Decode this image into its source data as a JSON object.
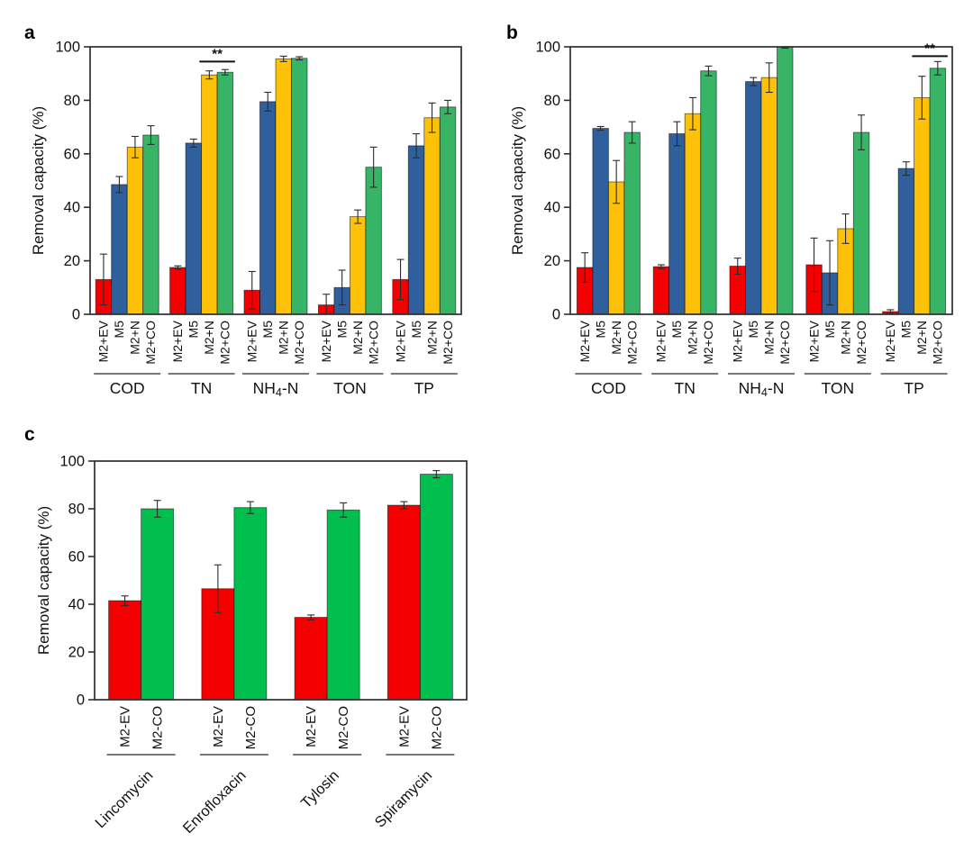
{
  "figure": {
    "background": "#ffffff",
    "axis_color": "#2e2e2e",
    "error_bar_color": "#2b2b2b",
    "text_color": "#111111"
  },
  "chart_data": [
    {
      "id": "a",
      "panel_label": "a",
      "type": "bar",
      "title": "",
      "xlabel": "",
      "ylabel": "Removal capacity (%)",
      "ylim": [
        0,
        100
      ],
      "yticks": [
        0,
        20,
        40,
        60,
        80,
        100
      ],
      "grid": false,
      "legend": "none",
      "categories": [
        "COD",
        "TN",
        "NH4-N",
        "TON",
        "TP"
      ],
      "series": [
        {
          "name": "M2+EV",
          "color": "#f40000",
          "values": [
            13,
            17.5,
            9,
            3.5,
            13
          ],
          "errors": [
            9.5,
            0.6,
            7,
            4,
            7.5
          ]
        },
        {
          "name": "M5",
          "color": "#305f9e",
          "values": [
            48.5,
            64,
            79.5,
            10,
            63
          ],
          "errors": [
            3,
            1.5,
            3.5,
            6.5,
            4.5
          ]
        },
        {
          "name": "M2+N",
          "color": "#fdc107",
          "values": [
            62.5,
            89.5,
            95.5,
            36.5,
            73.5
          ],
          "errors": [
            4,
            1.5,
            1,
            2.5,
            5.5
          ]
        },
        {
          "name": "M2+CO",
          "color": "#37b465",
          "values": [
            67,
            90.5,
            95.7,
            55,
            77.5
          ],
          "errors": [
            3.5,
            1,
            0.6,
            7.5,
            2.5
          ]
        }
      ],
      "significance": {
        "label": "**",
        "category": "TN",
        "series_pair": [
          "M2+N",
          "M2+CO"
        ],
        "line_y": 94.5
      }
    },
    {
      "id": "b",
      "panel_label": "b",
      "type": "bar",
      "title": "",
      "xlabel": "",
      "ylabel": "Removal capacity (%)",
      "ylim": [
        0,
        100
      ],
      "yticks": [
        0,
        20,
        40,
        60,
        80,
        100
      ],
      "grid": false,
      "legend": "none",
      "categories": [
        "COD",
        "TN",
        "NH4-N",
        "TON",
        "TP"
      ],
      "series": [
        {
          "name": "M2+EV",
          "color": "#f40000",
          "values": [
            17.5,
            17.8,
            18,
            18.5,
            1
          ],
          "errors": [
            5.5,
            0.7,
            3,
            10,
            0.7
          ]
        },
        {
          "name": "M5",
          "color": "#305f9e",
          "values": [
            69.5,
            67.5,
            87,
            15.5,
            54.5
          ],
          "errors": [
            0.7,
            4.5,
            1.5,
            12,
            2.5
          ]
        },
        {
          "name": "M2+N",
          "color": "#fdc107",
          "values": [
            49.5,
            75,
            88.5,
            32,
            81
          ],
          "errors": [
            8,
            6,
            5.5,
            5.5,
            8
          ]
        },
        {
          "name": "M2+CO",
          "color": "#37b465",
          "values": [
            68,
            91,
            100,
            68,
            92
          ],
          "errors": [
            4,
            1.8,
            0.5,
            6.5,
            2.5
          ]
        }
      ],
      "significance": {
        "label": "**",
        "category": "TP",
        "series_pair": [
          "M2+N",
          "M2+CO"
        ],
        "line_y": 96.5
      }
    },
    {
      "id": "c",
      "panel_label": "c",
      "type": "bar",
      "title": "",
      "xlabel": "",
      "ylabel": "Removal capacity (%)",
      "ylim": [
        0,
        100
      ],
      "yticks": [
        0,
        20,
        40,
        60,
        80,
        100
      ],
      "grid": false,
      "legend": "none",
      "categories": [
        "Lincomycin",
        "Enrofloxacin",
        "Tylosin",
        "Spiramycin"
      ],
      "series": [
        {
          "name": "M2-EV",
          "color": "#f40000",
          "values": [
            41.5,
            46.5,
            34.5,
            81.5
          ],
          "errors": [
            2,
            10,
            1,
            1.5
          ]
        },
        {
          "name": "M2-CO",
          "color": "#00bf4e",
          "values": [
            80,
            80.5,
            79.5,
            94.5
          ],
          "errors": [
            3.5,
            2.5,
            3,
            1.5
          ]
        }
      ],
      "significance": null
    }
  ]
}
